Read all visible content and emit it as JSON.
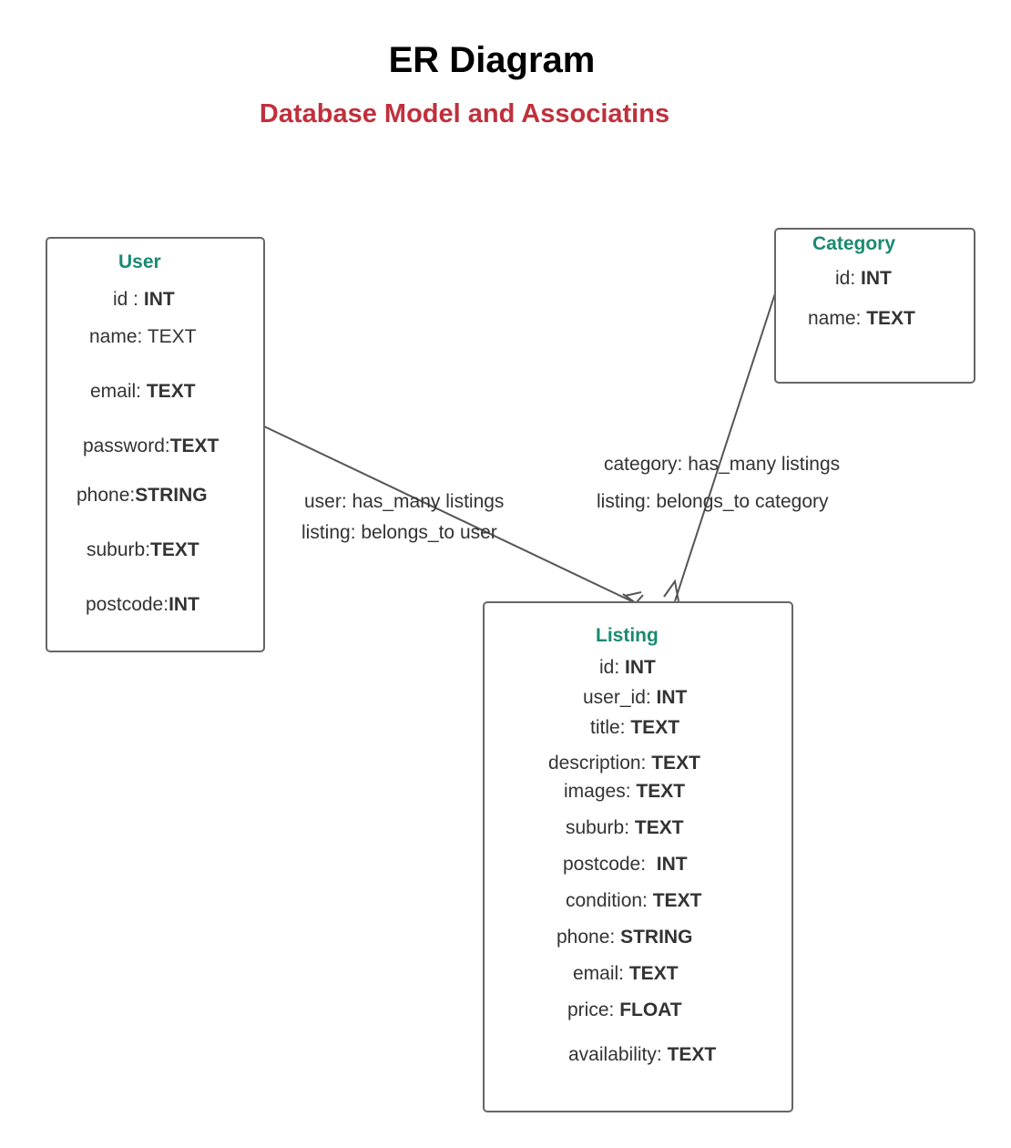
{
  "diagram": {
    "title": "ER Diagram",
    "subtitle": "Database Model and Associatins",
    "subtitle_color": "#c0303c",
    "entity_name_color": "#1a8a72",
    "line_color": "#555555"
  },
  "entities": {
    "user": {
      "name": "User",
      "attributes": [
        {
          "name": "id : ",
          "type": "INT"
        },
        {
          "name": "name: ",
          "type": "TEXT",
          "bold": false
        },
        {
          "name": "email: ",
          "type": "TEXT"
        },
        {
          "name": "password:",
          "type": "TEXT"
        },
        {
          "name": "phone:",
          "type": "STRING"
        },
        {
          "name": "suburb:",
          "type": "TEXT"
        },
        {
          "name": "postcode:",
          "type": "INT"
        }
      ]
    },
    "category": {
      "name": "Category",
      "attributes": [
        {
          "name": "id: ",
          "type": "INT"
        },
        {
          "name": "name: ",
          "type": "TEXT"
        }
      ]
    },
    "listing": {
      "name": "Listing",
      "attributes": [
        {
          "name": "id: ",
          "type": "INT"
        },
        {
          "name": "user_id: ",
          "type": "INT"
        },
        {
          "name": "title: ",
          "type": "TEXT"
        },
        {
          "name": "description: ",
          "type": "TEXT"
        },
        {
          "name": "images: ",
          "type": "TEXT"
        },
        {
          "name": "suburb: ",
          "type": "TEXT"
        },
        {
          "name": "postcode:  ",
          "type": "INT"
        },
        {
          "name": "condition: ",
          "type": "TEXT"
        },
        {
          "name": "phone: ",
          "type": "STRING"
        },
        {
          "name": "email: ",
          "type": "TEXT"
        },
        {
          "name": "price: ",
          "type": "FLOAT"
        },
        {
          "name": "availability: ",
          "type": "TEXT"
        }
      ]
    }
  },
  "relationships": {
    "user_listing": {
      "label_1": "user: has_many listings",
      "label_2": "listing: belongs_to user"
    },
    "category_listing": {
      "label_1": "category: has_many listings",
      "label_2": "listing: belongs_to category"
    }
  }
}
